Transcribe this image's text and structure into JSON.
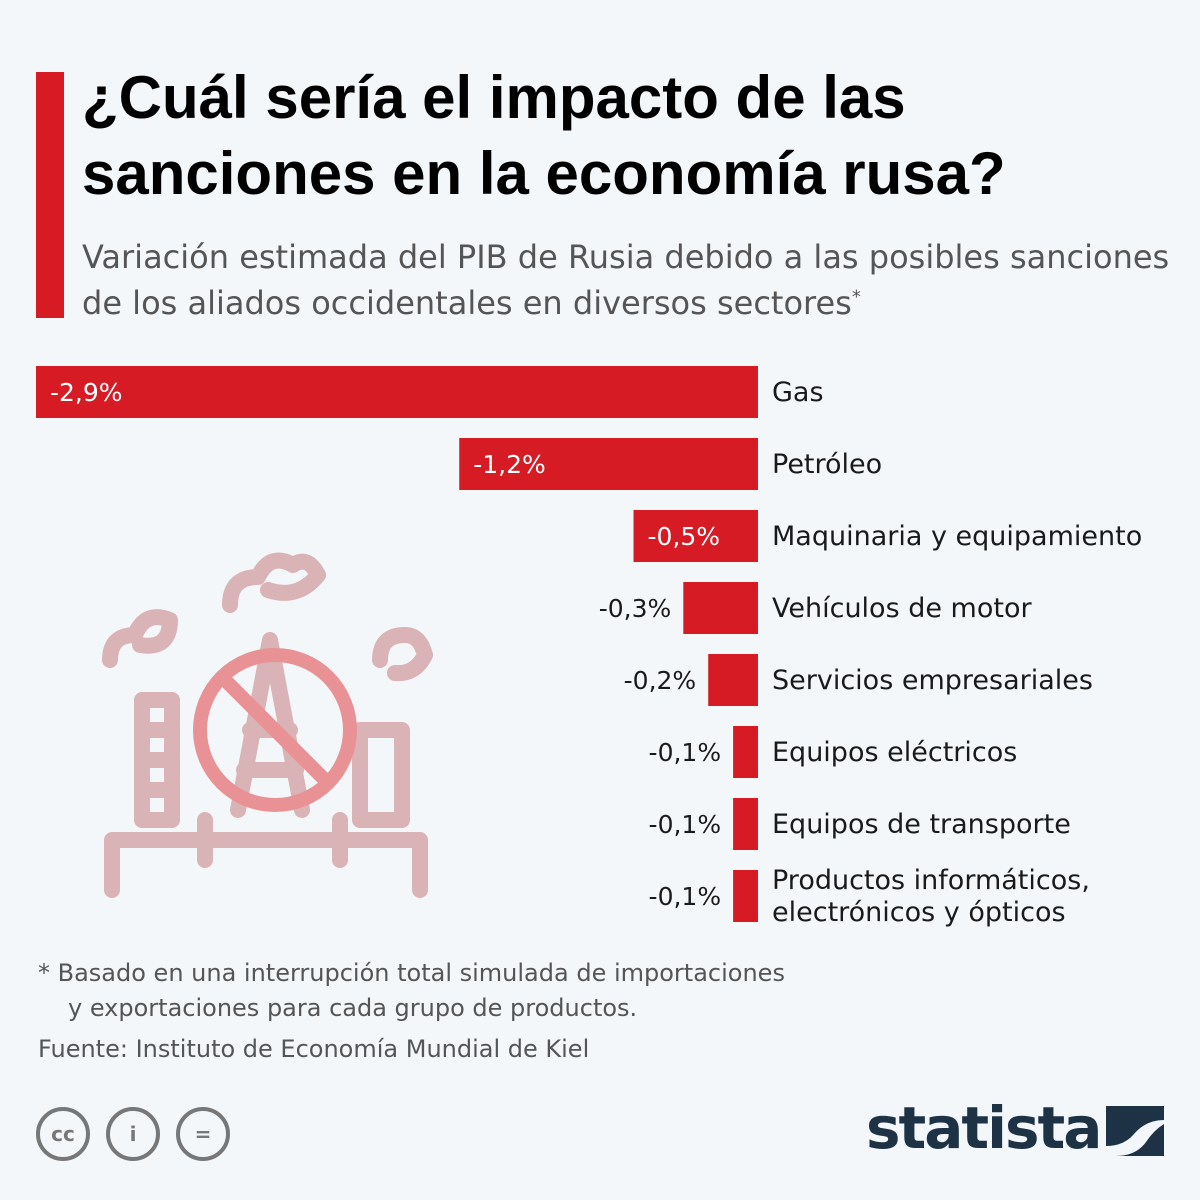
{
  "title": "¿Cuál sería el impacto de las sanciones en la economía rusa?",
  "subtitle": "Variación estimada del PIB de Rusia debido a las posibles sanciones de los aliados occidentales en diversos sectores",
  "subtitle_mark": "*",
  "colors": {
    "accent": "#d61b24",
    "illustration": "#d9b3b5",
    "brand": "#1e3246"
  },
  "chart_data": {
    "type": "bar",
    "orientation": "horizontal",
    "unit": "%",
    "categories": [
      "Gas",
      "Petróleo",
      "Maquinaria y equipamiento",
      "Vehículos de motor",
      "Servicios empresariales",
      "Equipos eléctricos",
      "Equipos de transporte",
      "Productos informáticos, electrónicos y ópticos"
    ],
    "values": [
      -2.9,
      -1.2,
      -0.5,
      -0.3,
      -0.2,
      -0.1,
      -0.1,
      -0.1
    ],
    "value_labels": [
      "-2,9%",
      "-1,2%",
      "-0,5%",
      "-0,3%",
      "-0,2%",
      "-0,1%",
      "-0,1%",
      "-0,1%"
    ],
    "xlim": [
      -2.9,
      0
    ],
    "grid": false,
    "legend": "none"
  },
  "illustration": "oil-rig-prohibited-icon",
  "footnote": {
    "line1": "* Basado en una interrupción total simulada de importaciones",
    "line2": "y exportaciones para cada grupo de productos."
  },
  "source": "Fuente: Instituto de Economía Mundial de Kiel",
  "license_icons": [
    "cc-icon",
    "attribution-icon",
    "no-derivatives-icon"
  ],
  "license_glyphs": [
    "cc",
    "i",
    "="
  ],
  "brand": "statista"
}
